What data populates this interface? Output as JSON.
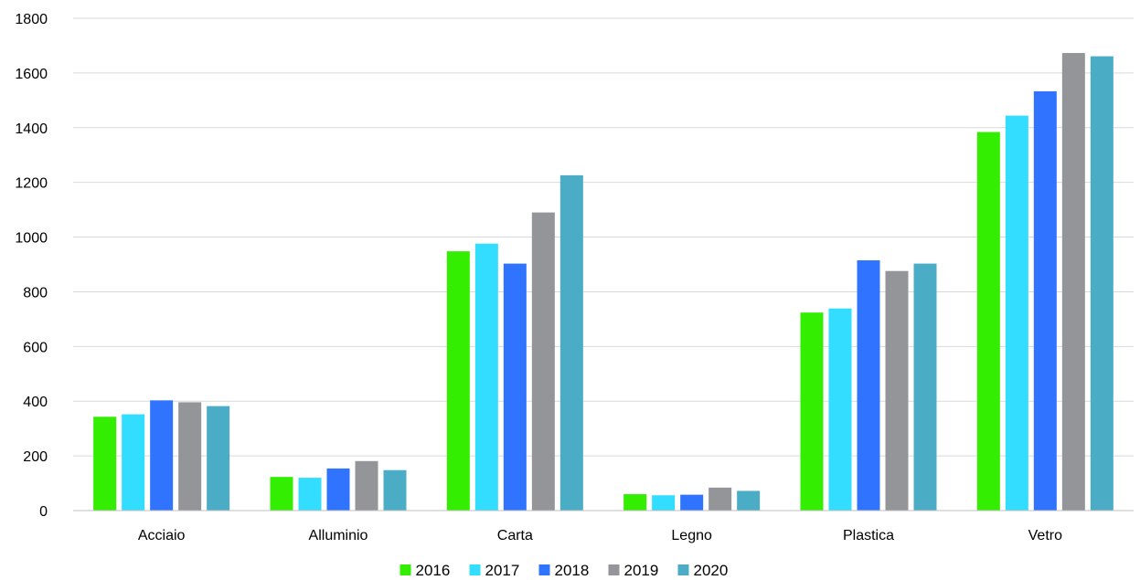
{
  "chart_data": {
    "type": "bar",
    "title": "",
    "xlabel": "",
    "ylabel": "",
    "ylim": [
      0,
      1800
    ],
    "yticks": [
      0,
      200,
      400,
      600,
      800,
      1000,
      1200,
      1400,
      1600,
      1800
    ],
    "grid": true,
    "legend_position": "bottom",
    "categories": [
      "Acciaio",
      "Alluminio",
      "Carta",
      "Legno",
      "Plastica",
      "Vetro"
    ],
    "series": [
      {
        "name": "2016",
        "color": "#33ee00",
        "values": [
          343,
          123,
          948,
          60,
          724,
          1384
        ]
      },
      {
        "name": "2017",
        "color": "#33ddff",
        "values": [
          352,
          120,
          976,
          56,
          739,
          1444
        ]
      },
      {
        "name": "2018",
        "color": "#2f73ff",
        "values": [
          403,
          154,
          903,
          58,
          915,
          1533
        ]
      },
      {
        "name": "2019",
        "color": "#939598",
        "values": [
          396,
          181,
          1090,
          84,
          876,
          1673
        ]
      },
      {
        "name": "2020",
        "color": "#4bacc6",
        "values": [
          382,
          148,
          1226,
          72,
          903,
          1661
        ]
      }
    ]
  }
}
